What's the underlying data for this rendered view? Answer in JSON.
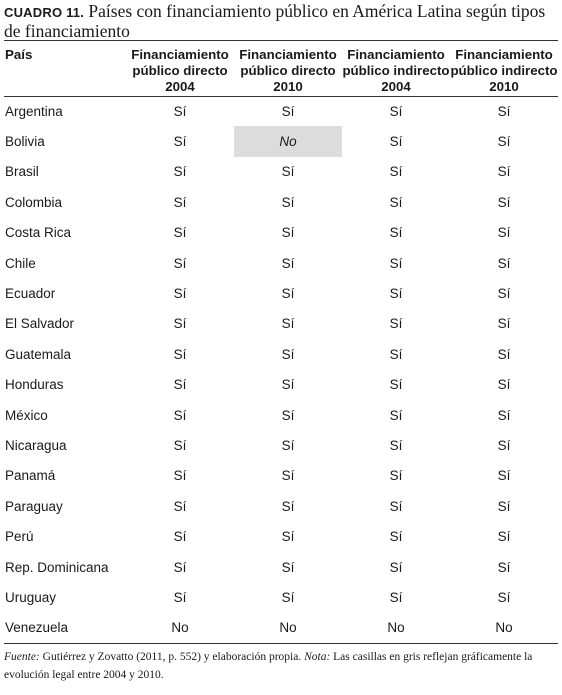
{
  "caption": {
    "label": "CUADRO 11.",
    "title": "Países con financiamiento público en América Latina según tipos de financiamiento"
  },
  "table": {
    "headers": [
      "País",
      "Financiamiento público directo 2004",
      "Financiamiento público directo 2010",
      "Financiamiento público indirecto 2004",
      "Financiamiento público indirecto 2010"
    ],
    "rows": [
      {
        "country": "Argentina",
        "values": [
          "Sí",
          "Sí",
          "Sí",
          "Sí"
        ]
      },
      {
        "country": "Bolivia",
        "values": [
          "Sí",
          "No",
          "Sí",
          "Sí"
        ],
        "shaded": 1
      },
      {
        "country": "Brasil",
        "values": [
          "Sí",
          "Sí",
          "Sí",
          "Sí"
        ]
      },
      {
        "country": "Colombia",
        "values": [
          "Sí",
          "Sí",
          "Sí",
          "Sí"
        ]
      },
      {
        "country": "Costa Rica",
        "values": [
          "Sí",
          "Sí",
          "Sí",
          "Sí"
        ]
      },
      {
        "country": "Chile",
        "values": [
          "Sí",
          "Sí",
          "Sí",
          "Sí"
        ]
      },
      {
        "country": "Ecuador",
        "values": [
          "Sí",
          "Sí",
          "Sí",
          "Sí"
        ]
      },
      {
        "country": "El Salvador",
        "values": [
          "Sí",
          "Sí",
          "Sí",
          "Sí"
        ]
      },
      {
        "country": "Guatemala",
        "values": [
          "Sí",
          "Sí",
          "Sí",
          "Sí"
        ]
      },
      {
        "country": "Honduras",
        "values": [
          "Sí",
          "Sí",
          "Sí",
          "Sí"
        ]
      },
      {
        "country": "México",
        "values": [
          "Sí",
          "Sí",
          "Sí",
          "Sí"
        ]
      },
      {
        "country": "Nicaragua",
        "values": [
          "Sí",
          "Sí",
          "Sí",
          "Sí"
        ]
      },
      {
        "country": "Panamá",
        "values": [
          "Sí",
          "Sí",
          "Sí",
          "Sí"
        ]
      },
      {
        "country": "Paraguay",
        "values": [
          "Sí",
          "Sí",
          "Sí",
          "Sí"
        ]
      },
      {
        "country": "Perú",
        "values": [
          "Sí",
          "Sí",
          "Sí",
          "Sí"
        ]
      },
      {
        "country": "Rep. Dominicana",
        "values": [
          "Sí",
          "Sí",
          "Sí",
          "Sí"
        ]
      },
      {
        "country": "Uruguay",
        "values": [
          "Sí",
          "Sí",
          "Sí",
          "Sí"
        ]
      },
      {
        "country": "Venezuela",
        "values": [
          "No",
          "No",
          "No",
          "No"
        ]
      }
    ],
    "shade_color": "#dcdcdc"
  },
  "note": {
    "source_label": "Fuente:",
    "source_text": " Gutiérrez y Zovatto (2011, p. 552) y elaboración propia. ",
    "note_label": "Nota:",
    "note_text": " Las casillas en gris reflejan gráficamente la evolución legal entre 2004 y 2010."
  }
}
